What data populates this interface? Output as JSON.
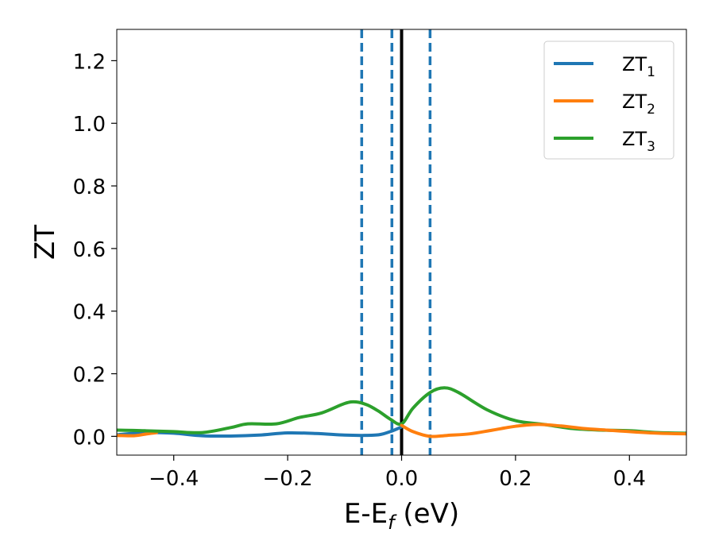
{
  "chart_data": {
    "type": "line",
    "title": "",
    "xlabel": "E-E",
    "xlabel_sub": "f",
    "xlabel_unit": " (eV)",
    "ylabel": "ZT",
    "xlim": [
      -0.5,
      0.5
    ],
    "ylim": [
      -0.06,
      1.3
    ],
    "xticks": [
      -0.4,
      -0.2,
      0.0,
      0.2,
      0.4
    ],
    "xtick_labels": [
      "−0.4",
      "−0.2",
      "0.0",
      "0.2",
      "0.4"
    ],
    "yticks": [
      0.0,
      0.2,
      0.4,
      0.6,
      0.8,
      1.0,
      1.2
    ],
    "ytick_labels": [
      "0.0",
      "0.2",
      "0.4",
      "0.6",
      "0.8",
      "1.0",
      "1.2"
    ],
    "grid": false,
    "legend_position": "top-right",
    "vertical_lines": [
      {
        "x": -0.07,
        "style": "dashed",
        "color": "#1f77b4"
      },
      {
        "x": -0.017,
        "style": "dashed",
        "color": "#1f77b4"
      },
      {
        "x": 0.05,
        "style": "dashed",
        "color": "#1f77b4"
      },
      {
        "x": 0.0,
        "style": "solid",
        "color": "#000000"
      }
    ],
    "series": [
      {
        "name": "ZT",
        "name_sub": "1",
        "color": "#1f77b4",
        "x": [
          -0.5,
          -0.45,
          -0.4,
          -0.35,
          -0.3,
          -0.25,
          -0.2,
          -0.15,
          -0.1,
          -0.07,
          -0.04,
          -0.02,
          0.0
        ],
        "y": [
          0.005,
          0.012,
          0.01,
          0.002,
          0.001,
          0.004,
          0.011,
          0.009,
          0.004,
          0.003,
          0.005,
          0.015,
          0.03
        ]
      },
      {
        "name": "ZT",
        "name_sub": "2",
        "color": "#ff7f0e",
        "x": [
          -0.5,
          -0.47,
          -0.45,
          -0.43
        ],
        "y": [
          0.003,
          0.002,
          0.007,
          0.012
        ]
      },
      {
        "name": "ZT",
        "name_sub": "3",
        "color": "#2ca02c",
        "x": [
          -0.5,
          -0.45,
          -0.4,
          -0.35,
          -0.3,
          -0.27,
          -0.22,
          -0.18,
          -0.14,
          -0.1,
          -0.08,
          -0.06,
          -0.04,
          -0.02,
          0.0,
          0.02,
          0.05,
          0.075,
          0.1,
          0.15,
          0.2,
          0.25,
          0.3,
          0.35,
          0.4,
          0.45,
          0.5
        ],
        "y": [
          0.02,
          0.018,
          0.015,
          0.012,
          0.028,
          0.04,
          0.04,
          0.06,
          0.075,
          0.105,
          0.11,
          0.1,
          0.08,
          0.055,
          0.04,
          0.09,
          0.14,
          0.155,
          0.14,
          0.085,
          0.05,
          0.038,
          0.025,
          0.02,
          0.018,
          0.012,
          0.01
        ]
      }
    ],
    "overlay_orange_tail": {
      "x": [
        0.0,
        0.02,
        0.05,
        0.08,
        0.12,
        0.16,
        0.2,
        0.24,
        0.28,
        0.32,
        0.36,
        0.4,
        0.45,
        0.5
      ],
      "y": [
        0.035,
        0.015,
        0.0,
        0.003,
        0.008,
        0.02,
        0.032,
        0.038,
        0.033,
        0.025,
        0.02,
        0.015,
        0.01,
        0.008
      ]
    }
  }
}
